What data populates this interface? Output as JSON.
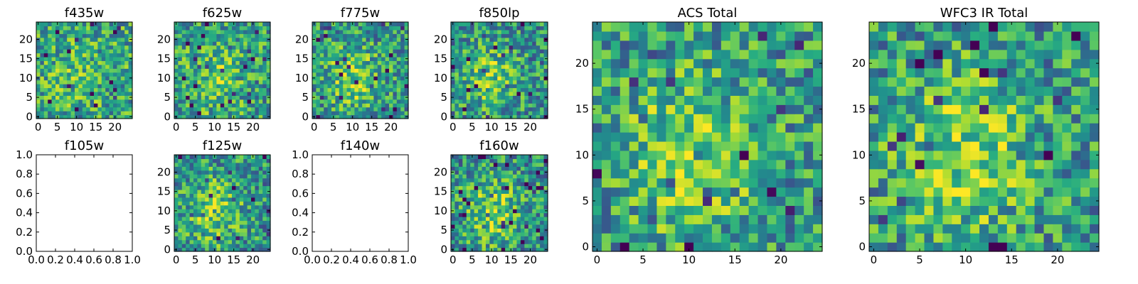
{
  "chart_data": [
    {
      "type": "heatmap",
      "title": "f435w",
      "grid_size": 25,
      "colormap": "viridis",
      "empty": false,
      "mean": 0.62,
      "blob": 0.1,
      "seed": 11,
      "xticks": [
        "0",
        "5",
        "10",
        "15",
        "20"
      ],
      "yticks": [
        "0",
        "5",
        "10",
        "15",
        "20"
      ],
      "xlim": [
        -0.5,
        24.5
      ],
      "ylim": [
        -0.5,
        24.5
      ]
    },
    {
      "type": "heatmap",
      "title": "f625w",
      "grid_size": 25,
      "colormap": "viridis",
      "empty": false,
      "mean": 0.62,
      "blob": 0.18,
      "seed": 23,
      "xticks": [
        "0",
        "5",
        "10",
        "15",
        "20"
      ],
      "yticks": [
        "0",
        "5",
        "10",
        "15",
        "20"
      ],
      "xlim": [
        -0.5,
        24.5
      ],
      "ylim": [
        -0.5,
        24.5
      ]
    },
    {
      "type": "heatmap",
      "title": "f775w",
      "grid_size": 25,
      "colormap": "viridis",
      "empty": false,
      "mean": 0.6,
      "blob": 0.28,
      "seed": 37,
      "xticks": [
        "0",
        "5",
        "10",
        "15",
        "20"
      ],
      "yticks": [
        "0",
        "5",
        "10",
        "15",
        "20"
      ],
      "xlim": [
        -0.5,
        24.5
      ],
      "ylim": [
        -0.5,
        24.5
      ]
    },
    {
      "type": "heatmap",
      "title": "f850lp",
      "grid_size": 25,
      "colormap": "viridis",
      "empty": false,
      "mean": 0.58,
      "blob": 0.25,
      "seed": 41,
      "xticks": [
        "0",
        "5",
        "10",
        "15",
        "20"
      ],
      "yticks": [
        "0",
        "5",
        "10",
        "15",
        "20"
      ],
      "xlim": [
        -0.5,
        24.5
      ],
      "ylim": [
        -0.5,
        24.5
      ]
    },
    {
      "type": "heatmap",
      "title": "f105w",
      "grid_size": 25,
      "colormap": "viridis",
      "empty": true,
      "mean": 0,
      "blob": 0,
      "seed": 0,
      "xticks": [
        "0.0",
        "0.2",
        "0.4",
        "0.6",
        "0.8",
        "1.0"
      ],
      "yticks": [
        "0.0",
        "0.2",
        "0.4",
        "0.6",
        "0.8",
        "1.0"
      ],
      "xlim": [
        0,
        1
      ],
      "ylim": [
        0,
        1
      ]
    },
    {
      "type": "heatmap",
      "title": "f125w",
      "grid_size": 25,
      "colormap": "viridis",
      "empty": false,
      "mean": 0.6,
      "blob": 0.28,
      "seed": 53,
      "xticks": [
        "0",
        "5",
        "10",
        "15",
        "20"
      ],
      "yticks": [
        "0",
        "5",
        "10",
        "15",
        "20"
      ],
      "xlim": [
        -0.5,
        24.5
      ],
      "ylim": [
        -0.5,
        24.5
      ]
    },
    {
      "type": "heatmap",
      "title": "f140w",
      "grid_size": 25,
      "colormap": "viridis",
      "empty": true,
      "mean": 0,
      "blob": 0,
      "seed": 0,
      "xticks": [
        "0.0",
        "0.2",
        "0.4",
        "0.6",
        "0.8",
        "1.0"
      ],
      "yticks": [
        "0.0",
        "0.2",
        "0.4",
        "0.6",
        "0.8",
        "1.0"
      ],
      "xlim": [
        0,
        1
      ],
      "ylim": [
        0,
        1
      ]
    },
    {
      "type": "heatmap",
      "title": "f160w",
      "grid_size": 25,
      "colormap": "viridis",
      "empty": false,
      "mean": 0.6,
      "blob": 0.3,
      "seed": 67,
      "xticks": [
        "0",
        "5",
        "10",
        "15",
        "20"
      ],
      "yticks": [
        "0",
        "5",
        "10",
        "15",
        "20"
      ],
      "xlim": [
        -0.5,
        24.5
      ],
      "ylim": [
        -0.5,
        24.5
      ]
    },
    {
      "type": "heatmap",
      "title": "ACS Total",
      "grid_size": 25,
      "colormap": "viridis",
      "empty": false,
      "mean": 0.62,
      "blob": 0.28,
      "seed": 79,
      "xticks": [
        "0",
        "5",
        "10",
        "15",
        "20"
      ],
      "yticks": [
        "0",
        "5",
        "10",
        "15",
        "20"
      ],
      "xlim": [
        -0.5,
        24.5
      ],
      "ylim": [
        -0.5,
        24.5
      ]
    },
    {
      "type": "heatmap",
      "title": "WFC3 IR Total",
      "grid_size": 25,
      "colormap": "viridis",
      "empty": false,
      "mean": 0.62,
      "blob": 0.3,
      "seed": 97,
      "xticks": [
        "0",
        "5",
        "10",
        "15",
        "20"
      ],
      "yticks": [
        "0",
        "5",
        "10",
        "15",
        "20"
      ],
      "xlim": [
        -0.5,
        24.5
      ],
      "ylim": [
        -0.5,
        24.5
      ]
    }
  ]
}
